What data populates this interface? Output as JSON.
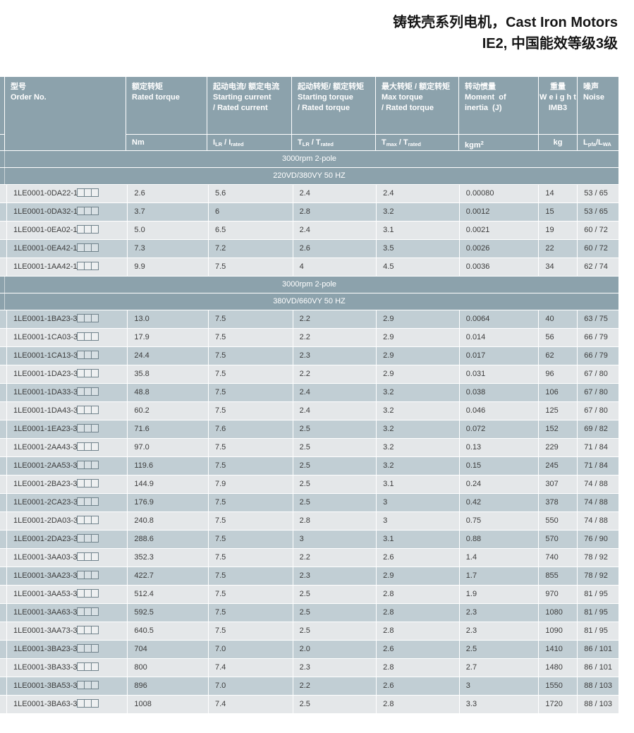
{
  "title": {
    "line1": "铸铁壳系列电机，Cast Iron Motors",
    "line2": "IE2, 中国能效等级3级"
  },
  "colors": {
    "header_bg": "#8CA2AC",
    "banner_bg": "#8CA2AC",
    "row_light": "#E4E7E9",
    "row_dark": "#C1CED4",
    "header_text": "#FFFFFF",
    "body_text": "#3C3C3C"
  },
  "table": {
    "columns": {
      "order": {
        "zh": "型号",
        "en": "Order No."
      },
      "rated_torque": {
        "zh": "额定转矩",
        "en1": "Rated torque"
      },
      "starting_current": {
        "zh": "起动电流/ 额定电流",
        "en1": "Starting current",
        "en2": "/ Rated current"
      },
      "starting_torque": {
        "zh": "起动转矩/ 额定转矩",
        "en1": "Starting torque",
        "en2": "/ Rated torque"
      },
      "max_torque": {
        "zh": "最大转矩 / 额定转矩",
        "en1": "Max torque",
        "en2": "/ Rated torque"
      },
      "inertia": {
        "zh": "转动惯量",
        "en1": "Moment  of",
        "en2": "inertia  (J)"
      },
      "weight": {
        "zh": "重量",
        "en1": "W e i g h t",
        "en2": "IMB3"
      },
      "noise": {
        "zh": "噪声",
        "en1": "Noise"
      }
    },
    "units": {
      "torque": "Nm",
      "current_ratio": {
        "b1": "I",
        "s1": "LR",
        "b2": " / I",
        "s2": "rated"
      },
      "torque_ratio": {
        "b1": "T",
        "s1": "LR",
        "b2": " / T",
        "s2": "rated"
      },
      "max_torque_ratio": {
        "b1": "T",
        "s1": "max",
        "b2": " / T",
        "s2": "rated"
      },
      "inertia_base": "kgm",
      "inertia_sup": "2",
      "weight": "kg",
      "noise": {
        "b1": "L",
        "s1": "pfa",
        "b2": "/L",
        "s2": "WA"
      }
    },
    "sections": [
      {
        "banner1": "3000rpm 2-pole",
        "banner2": "220VD/380VY  50 HZ",
        "rows": [
          [
            "1LE0001-0DA22-1□□□",
            "2.6",
            "5.6",
            "2.4",
            "2.4",
            "0.00080",
            "14",
            "53 / 65"
          ],
          [
            "1LE0001-0DA32-1□□□",
            "3.7",
            "6",
            "2.8",
            "3.2",
            "0.0012",
            "15",
            "53 / 65"
          ],
          [
            "1LE0001-0EA02-1□□□",
            "5.0",
            "6.5",
            "2.4",
            "3.1",
            "0.0021",
            "19",
            "60 / 72"
          ],
          [
            "1LE0001-0EA42-1□□□",
            "7.3",
            "7.2",
            "2.6",
            "3.5",
            "0.0026",
            "22",
            "60 / 72"
          ],
          [
            "1LE0001-1AA42-1□□□",
            "9.9",
            "7.5",
            "4",
            "4.5",
            "0.0036",
            "34",
            "62 / 74"
          ]
        ]
      },
      {
        "banner1": "3000rpm 2-pole",
        "banner2": "380VD/660VY  50 HZ",
        "rows": [
          [
            "1LE0001-1BA23-3□□□",
            "13.0",
            "7.5",
            "2.2",
            "2.9",
            "0.0064",
            "40",
            "63 / 75"
          ],
          [
            "1LE0001-1CA03-3□□□",
            "17.9",
            "7.5",
            "2.2",
            "2.9",
            "0.014",
            "56",
            "66 / 79"
          ],
          [
            "1LE0001-1CA13-3□□□",
            "24.4",
            "7.5",
            "2.3",
            "2.9",
            "0.017",
            "62",
            "66 / 79"
          ],
          [
            "1LE0001-1DA23-3□□□",
            "35.8",
            "7.5",
            "2.2",
            "2.9",
            "0.031",
            "96",
            "67 / 80"
          ],
          [
            "1LE0001-1DA33-3□□□",
            "48.8",
            "7.5",
            "2.4",
            "3.2",
            "0.038",
            "106",
            "67 / 80"
          ],
          [
            "1LE0001-1DA43-3□□□",
            "60.2",
            "7.5",
            "2.4",
            "3.2",
            "0.046",
            "125",
            "67 / 80"
          ],
          [
            "1LE0001-1EA23-3□□□",
            "71.6",
            "7.6",
            "2.5",
            "3.2",
            "0.072",
            "152",
            "69 / 82"
          ],
          [
            "1LE0001-2AA43-3□□□",
            "97.0",
            "7.5",
            "2.5",
            "3.2",
            "0.13",
            "229",
            "71 / 84"
          ],
          [
            "1LE0001-2AA53-3□□□",
            "119.6",
            "7.5",
            "2.5",
            "3.2",
            "0.15",
            "245",
            "71 / 84"
          ],
          [
            "1LE0001-2BA23-3□□□",
            "144.9",
            "7.9",
            "2.5",
            "3.1",
            "0.24",
            "307",
            "74 / 88"
          ],
          [
            "1LE0001-2CA23-3□□□",
            "176.9",
            "7.5",
            "2.5",
            "3",
            "0.42",
            "378",
            "74 / 88"
          ],
          [
            "1LE0001-2DA03-3□□□",
            "240.8",
            "7.5",
            "2.8",
            "3",
            "0.75",
            "550",
            "74 / 88"
          ],
          [
            "1LE0001-2DA23-3□□□",
            "288.6",
            "7.5",
            "3",
            "3.1",
            "0.88",
            "570",
            "76 / 90"
          ],
          [
            "1LE0001-3AA03-3□□□",
            "352.3",
            "7.5",
            "2.2",
            "2.6",
            "1.4",
            "740",
            "78 / 92"
          ],
          [
            "1LE0001-3AA23-3□□□",
            "422.7",
            "7.5",
            "2.3",
            "2.9",
            "1.7",
            "855",
            "78 / 92"
          ],
          [
            "1LE0001-3AA53-3□□□",
            "512.4",
            "7.5",
            "2.5",
            "2.8",
            "1.9",
            "970",
            "81 / 95"
          ],
          [
            "1LE0001-3AA63-3□□□",
            "592.5",
            "7.5",
            "2.5",
            "2.8",
            "2.3",
            "1080",
            "81 / 95"
          ],
          [
            "1LE0001-3AA73-3□□□",
            "640.5",
            "7.5",
            "2.5",
            "2.8",
            "2.3",
            "1090",
            "81 / 95"
          ],
          [
            "1LE0001-3BA23-3□□□",
            "704",
            "7.0",
            "2.0",
            "2.6",
            "2.5",
            "1410",
            "86 / 101"
          ],
          [
            "1LE0001-3BA33-3□□□",
            "800",
            "7.4",
            "2.3",
            "2.8",
            "2.7",
            "1480",
            "86 / 101"
          ],
          [
            "1LE0001-3BA53-3□□□",
            "896",
            "7.0",
            "2.2",
            "2.6",
            "3",
            "1550",
            "88 / 103"
          ],
          [
            "1LE0001-3BA63-3□□□",
            "1008",
            "7.4",
            "2.5",
            "2.8",
            "3.3",
            "1720",
            "88 / 103"
          ]
        ]
      }
    ]
  }
}
